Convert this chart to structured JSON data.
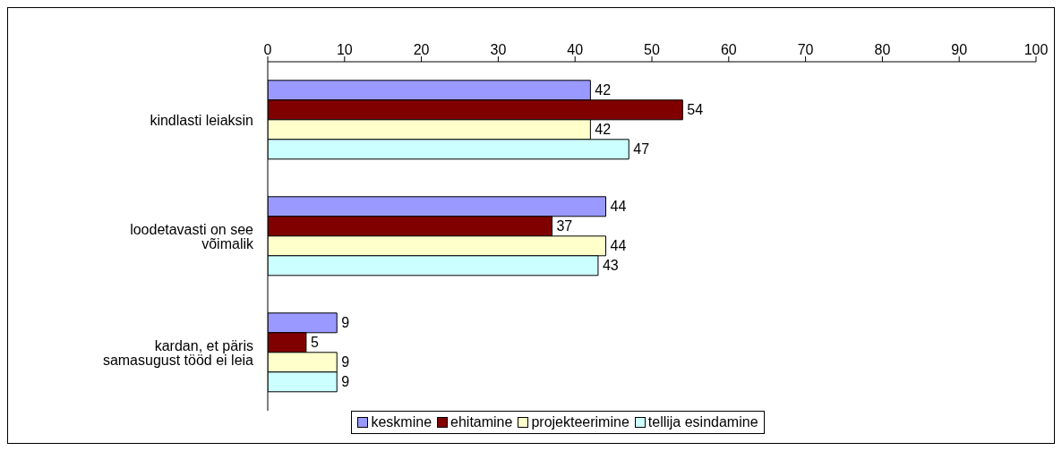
{
  "chart_data": {
    "type": "bar",
    "orientation": "horizontal",
    "categories": [
      "kindlasti leiaksin",
      "loodetavasti on see võimalik",
      "kardan, et päris samasugust tööd ei leia"
    ],
    "series": [
      {
        "name": "keskmine",
        "color": "#9999ff",
        "values": [
          42,
          44,
          9
        ]
      },
      {
        "name": "ehitamine",
        "color": "#800000",
        "values": [
          54,
          37,
          5
        ]
      },
      {
        "name": "projekteerimine",
        "color": "#ffffcc",
        "values": [
          42,
          44,
          9
        ]
      },
      {
        "name": "tellija esindamine",
        "color": "#ccffff",
        "values": [
          47,
          43,
          9
        ]
      }
    ],
    "xlim": [
      0,
      100
    ],
    "xticks": [
      0,
      10,
      20,
      30,
      40,
      50,
      60,
      70,
      80,
      90,
      100
    ],
    "grid": false,
    "legend": "bottom",
    "data_labels": true
  }
}
